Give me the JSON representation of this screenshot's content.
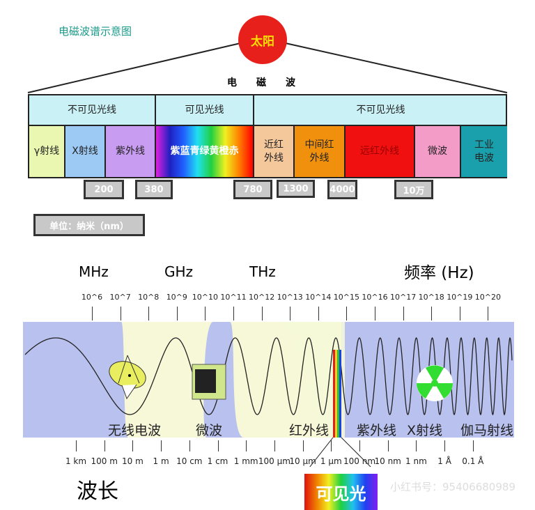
{
  "title": "电磁波谱示意图",
  "sun": "太阳",
  "top_caption": "电　　磁　　波",
  "header_sections": [
    "不可见光线",
    "可见光线",
    "不可见光线"
  ],
  "cells": [
    "γ射线",
    "X射线",
    "紫外线",
    "紫蓝青绿黄橙赤",
    "近红\n外线",
    "中间红\n外线",
    "远红外线",
    "微波",
    "工业\n电波"
  ],
  "boundaries": [
    "200",
    "380",
    "780",
    "1300",
    "4000",
    "10万"
  ],
  "unit": "单位：纳米（nm）",
  "freq_units": [
    "MHz",
    "GHz",
    "THz",
    "频率 (Hz)"
  ],
  "freq_ticks": [
    "10^6",
    "10^7",
    "10^8",
    "10^9",
    "10^10",
    "10^11",
    "10^12",
    "10^13",
    "10^14",
    "10^15",
    "10^16",
    "10^17",
    "10^18",
    "10^19",
    "10^20"
  ],
  "bands": [
    "无线电波",
    "微波",
    "红外线",
    "紫外线",
    "X射线",
    "伽马射线"
  ],
  "wavelength_ticks": [
    "1 km",
    "100 m",
    "10 m",
    "1 m",
    "10 cm",
    "1 cm",
    "1 mm",
    "100 μm",
    "10 μm",
    "1 μm",
    "100 nm",
    "10 nm",
    "1 nm",
    "1 Å",
    "0.1 Å"
  ],
  "wavelength_label": "波长",
  "visible_light": "可见光",
  "watermark": "小红书号：95406680989",
  "colors": {
    "title": "#1a9a8a",
    "sun": "#e8201c",
    "header": "#c9f1f6",
    "band_bg": "#b9c1ee",
    "band_light": "#f6f8d8"
  }
}
